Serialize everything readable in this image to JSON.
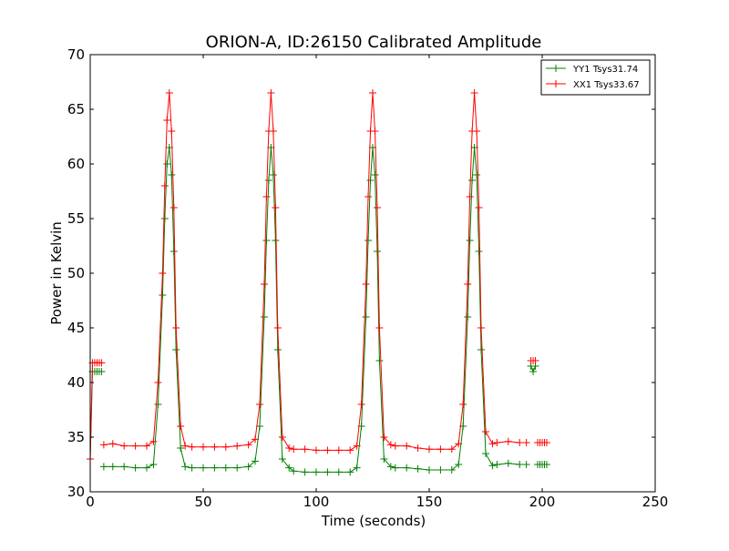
{
  "chart_data": {
    "type": "line",
    "title": "ORION-A, ID:26150 Calibrated Amplitude",
    "xlabel": "Time (seconds)",
    "ylabel": "Power in Kelvin",
    "xlim": [
      0,
      250
    ],
    "ylim": [
      30,
      70
    ],
    "x_ticks": [
      0,
      50,
      100,
      150,
      200,
      250
    ],
    "y_ticks": [
      30,
      35,
      40,
      45,
      50,
      55,
      60,
      65,
      70
    ],
    "grid": false,
    "legend_position": "top-right",
    "marker": "plus",
    "series": [
      {
        "name": "YY1 Tsys31.74",
        "color": "#008000",
        "segments": [
          {
            "x": [
              0,
              1,
              2,
              3,
              4,
              5
            ],
            "y": [
              33.0,
              41.0,
              41.0,
              41.0,
              41.0,
              41.0
            ]
          },
          {
            "x": [
              6,
              10,
              15,
              20,
              25,
              28,
              30,
              32,
              33,
              34,
              35,
              36,
              37,
              38,
              40,
              42,
              45,
              50,
              55,
              60,
              65,
              70,
              73,
              75,
              77,
              78,
              79,
              80,
              81,
              82,
              83,
              85,
              88,
              90,
              95,
              100,
              105,
              110,
              115,
              118,
              120,
              122,
              123,
              124,
              125,
              126,
              127,
              128,
              130,
              133,
              135,
              140,
              145,
              150,
              155,
              160,
              163,
              165,
              167,
              168,
              169,
              170,
              171,
              172,
              173,
              175,
              178,
              180,
              185,
              190,
              193
            ],
            "y": [
              32.3,
              32.3,
              32.3,
              32.2,
              32.2,
              32.5,
              38.0,
              48.0,
              55.0,
              60.0,
              61.5,
              59.0,
              52.0,
              43.0,
              34.0,
              32.3,
              32.2,
              32.2,
              32.2,
              32.2,
              32.2,
              32.3,
              32.8,
              36.0,
              46.0,
              53.0,
              58.5,
              61.5,
              59.0,
              53.0,
              43.0,
              33.0,
              32.2,
              31.9,
              31.8,
              31.8,
              31.8,
              31.8,
              31.8,
              32.2,
              36.0,
              46.0,
              53.0,
              58.5,
              61.5,
              59.0,
              52.0,
              42.0,
              33.0,
              32.3,
              32.2,
              32.2,
              32.1,
              32.0,
              32.0,
              32.0,
              32.5,
              36.0,
              46.0,
              53.0,
              58.5,
              61.5,
              59.0,
              52.0,
              43.0,
              33.5,
              32.4,
              32.5,
              32.6,
              32.5,
              32.5
            ]
          },
          {
            "x": [
              195,
              196,
              197
            ],
            "y": [
              41.5,
              41.0,
              41.5
            ]
          },
          {
            "x": [
              198,
              199,
              200,
              201,
              202
            ],
            "y": [
              32.5,
              32.5,
              32.5,
              32.5,
              32.5
            ]
          }
        ]
      },
      {
        "name": "XX1 Tsys33.67",
        "color": "#ff0000",
        "segments": [
          {
            "x": [
              0,
              1,
              2,
              3,
              4,
              5
            ],
            "y": [
              33.0,
              41.8,
              41.8,
              41.8,
              41.8,
              41.8
            ]
          },
          {
            "x": [
              6,
              10,
              15,
              20,
              25,
              28,
              30,
              32,
              33,
              34,
              35,
              36,
              37,
              38,
              40,
              42,
              45,
              50,
              55,
              60,
              65,
              70,
              73,
              75,
              77,
              78,
              79,
              80,
              81,
              82,
              83,
              85,
              88,
              90,
              95,
              100,
              105,
              110,
              115,
              118,
              120,
              122,
              123,
              124,
              125,
              126,
              127,
              128,
              130,
              133,
              135,
              140,
              145,
              150,
              155,
              160,
              163,
              165,
              167,
              168,
              169,
              170,
              171,
              172,
              173,
              175,
              178,
              180,
              185,
              190,
              193
            ],
            "y": [
              34.3,
              34.4,
              34.2,
              34.2,
              34.2,
              34.6,
              40.0,
              50.0,
              58.0,
              64.0,
              66.5,
              63.0,
              56.0,
              45.0,
              36.0,
              34.2,
              34.1,
              34.1,
              34.1,
              34.1,
              34.2,
              34.3,
              34.8,
              38.0,
              49.0,
              57.0,
              63.0,
              66.5,
              63.0,
              56.0,
              45.0,
              35.0,
              34.0,
              33.9,
              33.9,
              33.8,
              33.8,
              33.8,
              33.8,
              34.2,
              38.0,
              49.0,
              57.0,
              63.0,
              66.5,
              63.0,
              56.0,
              45.0,
              35.0,
              34.3,
              34.2,
              34.2,
              34.0,
              33.9,
              33.9,
              33.9,
              34.4,
              38.0,
              49.0,
              57.0,
              63.0,
              66.5,
              63.0,
              56.0,
              45.0,
              35.5,
              34.4,
              34.5,
              34.6,
              34.5,
              34.5
            ]
          },
          {
            "x": [
              195,
              196,
              197
            ],
            "y": [
              42.0,
              42.0,
              42.0
            ]
          },
          {
            "x": [
              198,
              199,
              200,
              201,
              202
            ],
            "y": [
              34.5,
              34.5,
              34.5,
              34.5,
              34.5
            ]
          }
        ]
      }
    ]
  }
}
